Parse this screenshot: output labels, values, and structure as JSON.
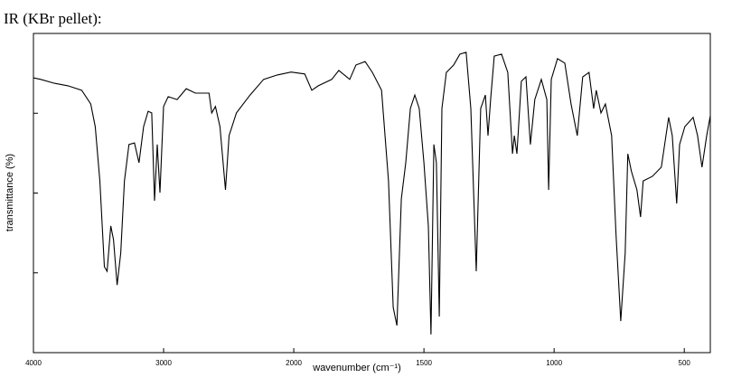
{
  "chart_data": {
    "type": "line",
    "title": "IR (KBr pellet):",
    "xlabel": "wavenumber (cm⁻¹)",
    "ylabel": "transmittance (%)",
    "x_scale_change": 2000,
    "xlim": [
      4000,
      400
    ],
    "ylim": [
      0,
      100
    ],
    "xticks": [
      4000,
      3000,
      2000,
      1500,
      1000,
      500
    ],
    "yticks": [
      25,
      50,
      75
    ],
    "color": "#000000",
    "x": [
      4000,
      3944,
      3839,
      3734,
      3629,
      3560,
      3525,
      3490,
      3455,
      3434,
      3406,
      3385,
      3357,
      3329,
      3301,
      3266,
      3224,
      3189,
      3154,
      3119,
      3091,
      3070,
      3049,
      3028,
      3000,
      2965,
      2896,
      2826,
      2756,
      2651,
      2630,
      2602,
      2567,
      2525,
      2497,
      2441,
      2336,
      2232,
      2126,
      2021,
      1958,
      1931,
      1906,
      1854,
      1827,
      1785,
      1761,
      1726,
      1698,
      1663,
      1636,
      1618,
      1604,
      1587,
      1570,
      1552,
      1535,
      1518,
      1500,
      1483,
      1473,
      1462,
      1452,
      1441,
      1431,
      1414,
      1386,
      1362,
      1338,
      1320,
      1299,
      1282,
      1264,
      1254,
      1244,
      1230,
      1202,
      1178,
      1160,
      1153,
      1143,
      1126,
      1108,
      1091,
      1074,
      1049,
      1028,
      1021,
      1011,
      987,
      959,
      935,
      911,
      890,
      866,
      848,
      838,
      820,
      803,
      779,
      762,
      744,
      727,
      717,
      703,
      682,
      668,
      658,
      623,
      588,
      560,
      546,
      529,
      518,
      498,
      466,
      449,
      432,
      414,
      400
    ],
    "values": [
      86.1,
      85.6,
      84.4,
      83.6,
      82.2,
      77.9,
      70.8,
      53.8,
      26.9,
      25.5,
      39.7,
      35.4,
      21.2,
      31.2,
      53.8,
      65.2,
      65.7,
      59.5,
      70.8,
      75.6,
      75.1,
      47.6,
      65.2,
      50.1,
      77.1,
      80.2,
      79.3,
      82.7,
      81.3,
      81.3,
      75.1,
      77.1,
      70.8,
      51.0,
      68.0,
      75.1,
      80.7,
      85.6,
      87.0,
      87.9,
      87.3,
      82.2,
      83.6,
      85.6,
      88.4,
      85.6,
      90.1,
      91.2,
      87.8,
      82.2,
      53.8,
      14.2,
      8.5,
      48.2,
      59.5,
      76.5,
      80.7,
      76.5,
      59.5,
      39.7,
      5.7,
      65.2,
      59.5,
      11.3,
      76.5,
      87.8,
      90.1,
      93.5,
      94.1,
      76.5,
      25.5,
      76.5,
      80.7,
      68.0,
      79.3,
      92.9,
      93.5,
      87.8,
      62.3,
      68.0,
      62.3,
      85.0,
      86.4,
      65.2,
      79.3,
      85.6,
      79.3,
      51.0,
      85.6,
      92.1,
      90.7,
      77.9,
      68.0,
      86.4,
      87.8,
      76.5,
      82.2,
      75.1,
      77.9,
      68.0,
      36.8,
      9.9,
      31.2,
      62.3,
      56.8,
      51.0,
      42.5,
      53.8,
      55.2,
      58.1,
      73.7,
      68.0,
      46.7,
      65.2,
      70.8,
      73.7,
      68.0,
      58.1,
      68.0,
      74.2
    ]
  }
}
